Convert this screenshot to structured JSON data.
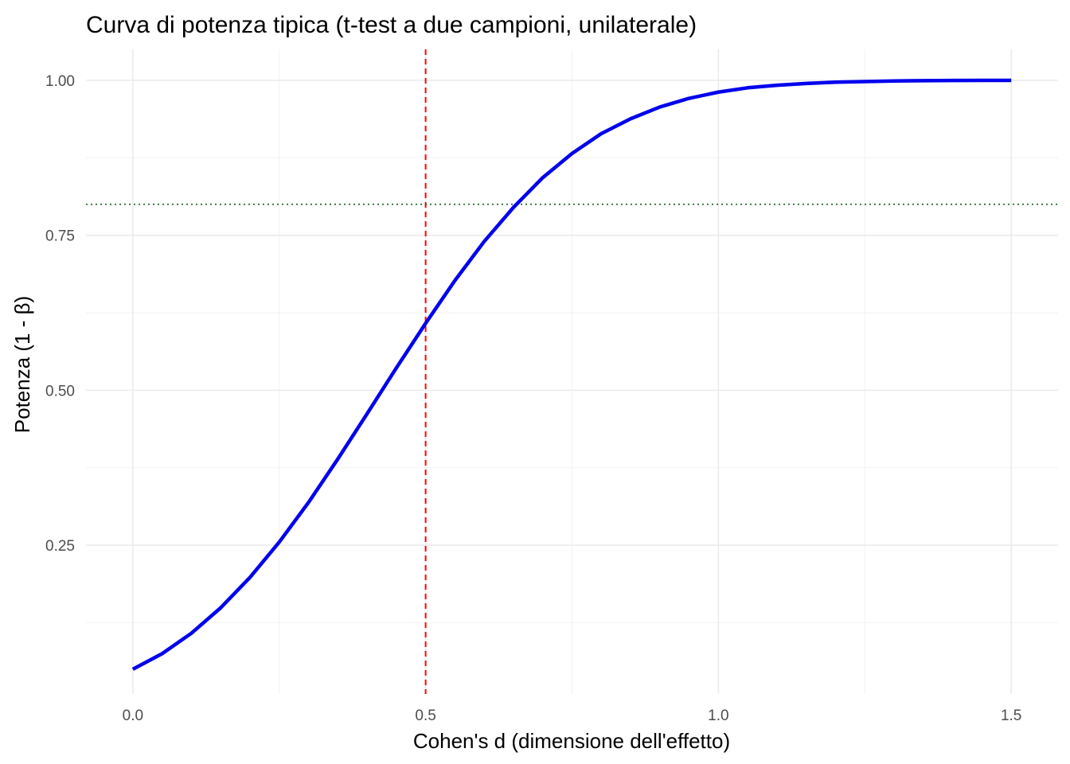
{
  "chart_data": {
    "type": "line",
    "title": "Curva di potenza tipica (t-test a due campioni, unilaterale)",
    "xlabel": "Cohen's d (dimensione dell'effetto)",
    "ylabel": "Potenza (1 - β)",
    "xlim": [
      -0.08,
      1.58
    ],
    "ylim": [
      0.01,
      1.05
    ],
    "x_ticks": [
      0.0,
      0.5,
      1.0,
      1.5
    ],
    "x_tick_labels": [
      "0.0",
      "0.5",
      "1.0",
      "1.5"
    ],
    "y_ticks": [
      0.25,
      0.5,
      0.75,
      1.0
    ],
    "y_tick_labels": [
      "0.25",
      "0.50",
      "0.75",
      "1.00"
    ],
    "grid": true,
    "series": [
      {
        "color": "#0000ee",
        "x": [
          0.0,
          0.05,
          0.1,
          0.15,
          0.2,
          0.25,
          0.3,
          0.35,
          0.4,
          0.45,
          0.5,
          0.55,
          0.6,
          0.65,
          0.7,
          0.75,
          0.8,
          0.85,
          0.9,
          0.95,
          1.0,
          1.05,
          1.1,
          1.15,
          1.2,
          1.25,
          1.3,
          1.35,
          1.4,
          1.45,
          1.5
        ],
        "y": [
          0.05,
          0.075,
          0.108,
          0.149,
          0.198,
          0.255,
          0.319,
          0.389,
          0.462,
          0.536,
          0.608,
          0.677,
          0.74,
          0.795,
          0.843,
          0.882,
          0.914,
          0.938,
          0.957,
          0.971,
          0.981,
          0.988,
          0.992,
          0.995,
          0.997,
          0.998,
          0.999,
          0.9995,
          0.9997,
          0.9999,
          0.99995
        ]
      }
    ],
    "reference_lines": [
      {
        "axis": "x",
        "value": 0.5,
        "color": "#ff0000",
        "style": "dashed"
      },
      {
        "axis": "y",
        "value": 0.8,
        "color": "#1a5c1a",
        "style": "dotted"
      }
    ]
  }
}
